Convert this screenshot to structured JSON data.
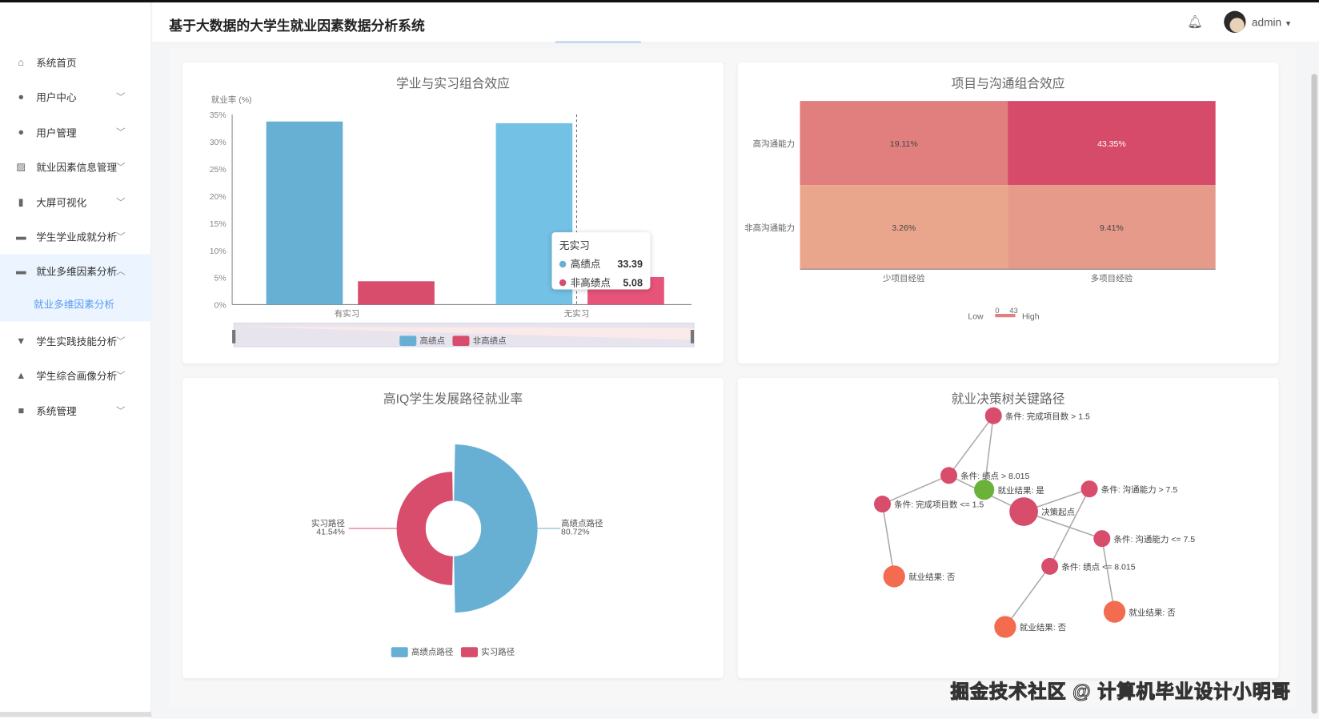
{
  "app": {
    "title": "基于大数据的大学生就业因素数据分析系统",
    "user": "admin",
    "icons": [
      "bell-icon",
      "avatar",
      "caret-down-icon"
    ]
  },
  "sidebar": {
    "items": [
      {
        "label": "系统首页",
        "icon": "home-icon",
        "expandable": false
      },
      {
        "label": "用户中心",
        "icon": "user-icon",
        "expandable": true
      },
      {
        "label": "用户管理",
        "icon": "pin-icon",
        "expandable": true
      },
      {
        "label": "就业因素信息管理",
        "icon": "chart-icon",
        "expandable": true
      },
      {
        "label": "大屏可视化",
        "icon": "bars-icon",
        "expandable": true
      },
      {
        "label": "学生学业成就分析",
        "icon": "chat-icon",
        "expandable": true
      },
      {
        "label": "就业多维因素分析",
        "icon": "monitor-icon",
        "expandable": true,
        "active": true
      },
      {
        "label": "学生实践技能分析",
        "icon": "stamp-icon",
        "expandable": true
      },
      {
        "label": "学生综合画像分析",
        "icon": "person-icon",
        "expandable": true
      },
      {
        "label": "系统管理",
        "icon": "video-icon",
        "expandable": true
      }
    ],
    "sub_item": "就业多维因素分析"
  },
  "watermark": "掘金技术社区 @ 计算机毕业设计小明哥",
  "chart_data": [
    {
      "type": "bar",
      "title": "学业与实习组合效应",
      "ylabel": "就业率 (%)",
      "ylim": [
        0,
        35
      ],
      "yticks": [
        "0%",
        "5%",
        "10%",
        "15%",
        "20%",
        "25%",
        "30%",
        "35%"
      ],
      "categories": [
        "有实习",
        "无实习"
      ],
      "series": [
        {
          "name": "高绩点",
          "color": "#67b0d4",
          "values": [
            33.7,
            33.39
          ]
        },
        {
          "name": "非高绩点",
          "color": "#d84d6c",
          "values": [
            4.3,
            5.08
          ]
        }
      ],
      "legend": "bottom",
      "datazoom": true,
      "tooltip": {
        "title": "无实习",
        "rows": [
          {
            "name": "高绩点",
            "value": "33.39",
            "color": "#67b0d4"
          },
          {
            "name": "非高绩点",
            "value": "5.08",
            "color": "#d84d6c"
          }
        ]
      }
    },
    {
      "type": "heatmap",
      "title": "项目与沟通组合效应",
      "x": [
        "少项目经验",
        "多项目经验"
      ],
      "y": [
        "高沟通能力",
        "非高沟通能力"
      ],
      "values": [
        [
          19.11,
          43.35
        ],
        [
          3.26,
          9.41
        ]
      ],
      "labels": [
        [
          "19.11%",
          "43.35%"
        ],
        [
          "3.26%",
          "9.41%"
        ]
      ],
      "colors": [
        [
          "#e07f7e",
          "#d64b6a"
        ],
        [
          "#eaa68c",
          "#e69a8a"
        ]
      ],
      "visualmap": {
        "low": "Low",
        "high": "High",
        "min": "0",
        "max": "43"
      }
    },
    {
      "type": "pie",
      "title": "高IQ学生发展路径就业率",
      "rose": true,
      "slices": [
        {
          "name": "高绩点路径",
          "value": 80.72,
          "label": "80.72%",
          "color": "#67b0d4"
        },
        {
          "name": "实习路径",
          "value": 41.54,
          "label": "41.54%",
          "color": "#d84d6c"
        }
      ],
      "legend": "bottom"
    },
    {
      "type": "graph",
      "title": "就业决策树关键路径",
      "nodes": [
        {
          "id": "A",
          "label": "条件: 完成项目数 > 1.5",
          "color": "#d84d6c"
        },
        {
          "id": "B",
          "label": "条件: 绩点 > 8.015",
          "color": "#d84d6c"
        },
        {
          "id": "C",
          "label": "就业结果: 是",
          "color": "#6ab23a"
        },
        {
          "id": "D",
          "label": "条件: 完成项目数 <= 1.5",
          "color": "#d84d6c"
        },
        {
          "id": "E",
          "label": "决策起点",
          "color": "#d84d6c"
        },
        {
          "id": "F",
          "label": "条件: 沟通能力 > 7.5",
          "color": "#d84d6c"
        },
        {
          "id": "G",
          "label": "条件: 沟通能力 <= 7.5",
          "color": "#d84d6c"
        },
        {
          "id": "H",
          "label": "条件: 绩点 <= 8.015",
          "color": "#d84d6c"
        },
        {
          "id": "I",
          "label": "就业结果: 否",
          "color": "#f36c4f"
        },
        {
          "id": "J",
          "label": "就业结果: 否",
          "color": "#f36c4f"
        },
        {
          "id": "K",
          "label": "就业结果: 否",
          "color": "#f36c4f"
        }
      ],
      "edges": [
        [
          "A",
          "B"
        ],
        [
          "A",
          "C"
        ],
        [
          "B",
          "D"
        ],
        [
          "B",
          "E"
        ],
        [
          "D",
          "I"
        ],
        [
          "E",
          "F"
        ],
        [
          "E",
          "G"
        ],
        [
          "F",
          "H"
        ],
        [
          "H",
          "J"
        ],
        [
          "G",
          "K"
        ]
      ]
    }
  ]
}
